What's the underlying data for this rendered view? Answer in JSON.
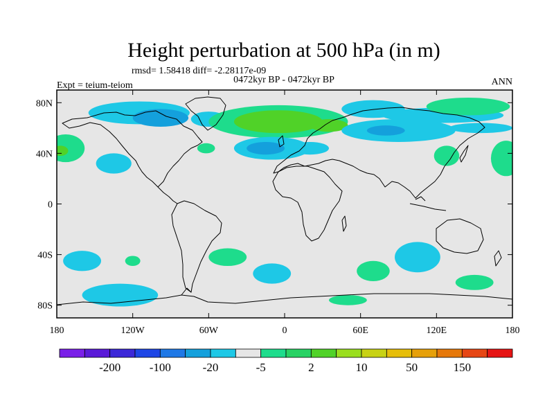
{
  "title": "Height perturbation at 500 hPa (in m)",
  "stats": "rmsd= 1.58418  diff= -2.28117e-09",
  "left_label": "Expt = teium-teiom",
  "center_label": "0472kyr BP - 0472kyr BP",
  "right_label": "ANN",
  "map": {
    "lon_range": [
      -180,
      180
    ],
    "lat_range": [
      -90,
      90
    ],
    "x_ticks": [
      {
        "lon": -180,
        "label": "180"
      },
      {
        "lon": -120,
        "label": "120W"
      },
      {
        "lon": -60,
        "label": "60W"
      },
      {
        "lon": 0,
        "label": "0"
      },
      {
        "lon": 60,
        "label": "60E"
      },
      {
        "lon": 120,
        "label": "120E"
      },
      {
        "lon": 180,
        "label": "180"
      }
    ],
    "y_ticks": [
      {
        "lat": 80,
        "label": "80N"
      },
      {
        "lat": 40,
        "label": "40N"
      },
      {
        "lat": 0,
        "label": "0"
      },
      {
        "lat": -40,
        "label": "40S"
      },
      {
        "lat": -80,
        "label": "80S"
      }
    ],
    "colors": {
      "background": "#e6e6e6",
      "lightblue": "#1ec8e6",
      "blue": "#14a0dc",
      "lightgreen": "#1edc8c",
      "green": "#50d228",
      "coast": "#000000"
    },
    "anomalies": [
      {
        "lon": -115,
        "lat": 72,
        "rx": 40,
        "ry": 9,
        "level": "lightblue"
      },
      {
        "lon": -98,
        "lat": 68,
        "rx": 22,
        "ry": 7,
        "level": "blue"
      },
      {
        "lon": -60,
        "lat": 67,
        "rx": 14,
        "ry": 6,
        "level": "lightblue"
      },
      {
        "lon": -5,
        "lat": 65,
        "rx": 55,
        "ry": 13,
        "level": "lightgreen"
      },
      {
        "lon": -5,
        "lat": 65,
        "rx": 35,
        "ry": 9,
        "level": "green"
      },
      {
        "lon": 35,
        "lat": 62,
        "rx": 15,
        "ry": 5,
        "level": "green"
      },
      {
        "lon": -10,
        "lat": 44,
        "rx": 30,
        "ry": 9,
        "level": "lightblue"
      },
      {
        "lon": -15,
        "lat": 44,
        "rx": 15,
        "ry": 5,
        "level": "blue"
      },
      {
        "lon": 20,
        "lat": 44,
        "rx": 15,
        "ry": 5,
        "level": "lightblue"
      },
      {
        "lon": -173,
        "lat": 44,
        "rx": 15,
        "ry": 11,
        "level": "lightgreen"
      },
      {
        "lon": -177,
        "lat": 42,
        "rx": 6,
        "ry": 4,
        "level": "green"
      },
      {
        "lon": -135,
        "lat": 32,
        "rx": 14,
        "ry": 8,
        "level": "lightblue"
      },
      {
        "lon": -62,
        "lat": 44,
        "rx": 7,
        "ry": 4,
        "level": "lightgreen"
      },
      {
        "lon": 70,
        "lat": 75,
        "rx": 25,
        "ry": 7,
        "level": "lightblue"
      },
      {
        "lon": 125,
        "lat": 70,
        "rx": 48,
        "ry": 6,
        "level": "lightblue"
      },
      {
        "lon": 90,
        "lat": 58,
        "rx": 45,
        "ry": 9,
        "level": "lightblue"
      },
      {
        "lon": 80,
        "lat": 58,
        "rx": 15,
        "ry": 4,
        "level": "blue"
      },
      {
        "lon": 145,
        "lat": 77,
        "rx": 33,
        "ry": 7,
        "level": "lightgreen"
      },
      {
        "lon": 155,
        "lat": 60,
        "rx": 25,
        "ry": 4,
        "level": "lightblue"
      },
      {
        "lon": 128,
        "lat": 38,
        "rx": 10,
        "ry": 8,
        "level": "lightgreen"
      },
      {
        "lon": 175,
        "lat": 36,
        "rx": 12,
        "ry": 14,
        "level": "lightgreen"
      },
      {
        "lon": -160,
        "lat": -45,
        "rx": 15,
        "ry": 8,
        "level": "lightblue"
      },
      {
        "lon": -120,
        "lat": -45,
        "rx": 6,
        "ry": 4,
        "level": "lightgreen"
      },
      {
        "lon": -45,
        "lat": -42,
        "rx": 15,
        "ry": 7,
        "level": "lightgreen"
      },
      {
        "lon": -10,
        "lat": -55,
        "rx": 15,
        "ry": 8,
        "level": "lightblue"
      },
      {
        "lon": 70,
        "lat": -53,
        "rx": 13,
        "ry": 8,
        "level": "lightgreen"
      },
      {
        "lon": 105,
        "lat": -42,
        "rx": 18,
        "ry": 12,
        "level": "lightblue"
      },
      {
        "lon": 150,
        "lat": -62,
        "rx": 15,
        "ry": 6,
        "level": "lightgreen"
      },
      {
        "lon": -130,
        "lat": -72,
        "rx": 30,
        "ry": 9,
        "level": "lightblue"
      },
      {
        "lon": 50,
        "lat": -76,
        "rx": 15,
        "ry": 4,
        "level": "lightgreen"
      }
    ]
  },
  "colorbar": {
    "colors": [
      "#7a1fe8",
      "#5a1ad8",
      "#3c28d8",
      "#1e46e6",
      "#1e78e6",
      "#14a0dc",
      "#1ec8e6",
      "#e6e6e6",
      "#1edc8c",
      "#28d264",
      "#50d228",
      "#9ade1e",
      "#c8d214",
      "#e6be0a",
      "#e6a00a",
      "#e6780a",
      "#e64614",
      "#e61414"
    ],
    "labels": [
      {
        "after_box": 1,
        "label": "-200"
      },
      {
        "after_box": 3,
        "label": "-100"
      },
      {
        "after_box": 5,
        "label": "-20"
      },
      {
        "after_box": 7,
        "label": "-5"
      },
      {
        "after_box": 9,
        "label": "2"
      },
      {
        "after_box": 11,
        "label": "10"
      },
      {
        "after_box": 13,
        "label": "50"
      },
      {
        "after_box": 15,
        "label": "150"
      }
    ]
  }
}
